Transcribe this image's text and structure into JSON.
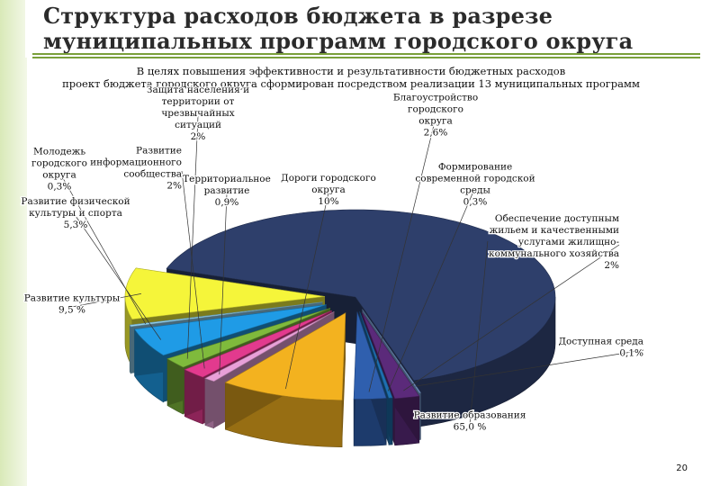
{
  "slide": {
    "title_line1": "Структура расходов бюджета в разрезе",
    "title_line2": "муниципальных программ городского округа",
    "subtitle_line1": "В целях повышения эффективности и результативности бюджетных расходов",
    "subtitle_line2": "проект бюджета городского округа сформирован посредством  реализации 13 муниципальных программ",
    "page_number": "20"
  },
  "chart_data": {
    "type": "pie",
    "style": "3d-exploded",
    "slices": [
      {
        "label": [
          "Развитие образования",
          "65,0 %"
        ],
        "value": 65.0,
        "color": "#2e3f6b"
      },
      {
        "label": [
          "Доступная среда",
          "0,1%"
        ],
        "value": 0.1,
        "color": "#7fa3d8"
      },
      {
        "label": [
          "Обеспечение доступным",
          "жильем и качественными",
          "услугами жилищно-",
          "коммунального хозяйства",
          "2%"
        ],
        "value": 2.0,
        "color": "#5b2a7a"
      },
      {
        "label": [
          "Формирование",
          "современной городской",
          "среды",
          "0,3%"
        ],
        "value": 0.3,
        "color": "#1e6fb0"
      },
      {
        "label": [
          "Благоустройство",
          "городского",
          "округа",
          "2,6%"
        ],
        "value": 2.6,
        "color": "#2f5fae"
      },
      {
        "label": [
          "Дороги городского",
          "округа",
          "10%"
        ],
        "value": 10.0,
        "color": "#f3b21f"
      },
      {
        "label": [
          "Территориальное",
          "развитие",
          "0,9%"
        ],
        "value": 0.9,
        "color": "#e8a0d8"
      },
      {
        "label": [
          "Развитие",
          "информационного",
          "сообщества",
          "2%"
        ],
        "value": 2.0,
        "color": "#e23a8e"
      },
      {
        "label": [
          "Защита населения и",
          "территории от",
          "чрезвычайных",
          "ситуаций",
          "2%"
        ],
        "value": 2.0,
        "color": "#7fba3c"
      },
      {
        "label": [
          "Развитие физической",
          "культуры и спорта",
          "5,3%"
        ],
        "value": 5.3,
        "color": "#1f9be6"
      },
      {
        "label": [
          "Молодежь",
          "городского",
          "округа",
          "0,3%"
        ],
        "value": 0.3,
        "color": "#8fd0f0"
      },
      {
        "label": [
          "Развитие культуры",
          "9,5 %"
        ],
        "value": 9.5,
        "color": "#f5f53a"
      }
    ]
  }
}
